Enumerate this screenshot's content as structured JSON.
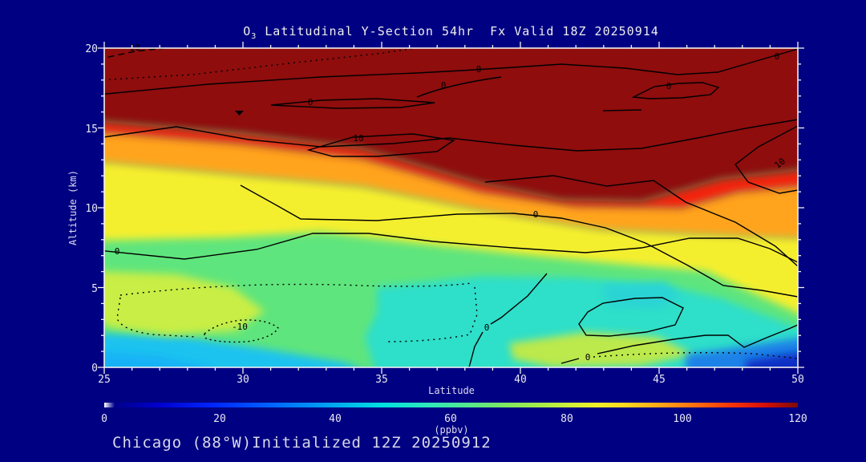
{
  "title": {
    "element": "O",
    "subscript": "3",
    "text": " Latitudinal Y-Section 54hr  Fx Valid 18Z 20250914"
  },
  "footer": {
    "text": "Chicago (88°W)Initialized 12Z 20250912"
  },
  "axes": {
    "x": {
      "label": "Latitude",
      "ticks": [
        "25",
        "30",
        "35",
        "40",
        "45",
        "50"
      ]
    },
    "y": {
      "label": "Altitude (km)",
      "ticks": [
        "0",
        "5",
        "10",
        "15",
        "20"
      ]
    }
  },
  "colorbar": {
    "ticks": [
      "0",
      "20",
      "40",
      "60",
      "80",
      "100",
      "120"
    ],
    "unit": "(ppbv)",
    "min": 0,
    "max": 120,
    "colors": [
      "#ffffff",
      "#00008b",
      "#0028ff",
      "#00a8f0",
      "#00e0e0",
      "#58e888",
      "#a8ec48",
      "#f0f028",
      "#ffd820",
      "#ffa818",
      "#f83808",
      "#d81008",
      "#7c0a04"
    ]
  },
  "contours": {
    "labels": [
      {
        "t": "10"
      },
      {
        "t": "0"
      },
      {
        "t": "0"
      },
      {
        "t": "0"
      },
      {
        "t": "0"
      },
      {
        "t": "0"
      },
      {
        "t": "10"
      },
      {
        "t": "10"
      },
      {
        "t": "0"
      },
      {
        "t": "0"
      },
      {
        "t": "-10"
      },
      {
        "t": "0"
      },
      {
        "t": "0"
      }
    ],
    "levels": [
      -10,
      0,
      10
    ],
    "negative_style": "dotted"
  },
  "chart_data": {
    "type": "heatmap",
    "title": "O3 Latitudinal Y-Section 54hr  Fx Valid 18Z 20250914",
    "xlabel": "Latitude",
    "ylabel": "Altitude (km)",
    "units": "ppbv",
    "xlim": [
      25,
      50
    ],
    "ylim": [
      0,
      20
    ],
    "colorbar_range": [
      0,
      120
    ],
    "x_latitude": [
      25,
      30,
      35,
      40,
      45,
      50
    ],
    "y_altitude_km": [
      0,
      2,
      4,
      6,
      8,
      10,
      12,
      14,
      16,
      18,
      20
    ],
    "ozone_ppbv_rows_by_altitude": [
      [
        22,
        35,
        48,
        62,
        58,
        8
      ],
      [
        42,
        50,
        45,
        48,
        48,
        35
      ],
      [
        68,
        62,
        55,
        45,
        46,
        48
      ],
      [
        62,
        58,
        58,
        55,
        58,
        58
      ],
      [
        70,
        68,
        65,
        72,
        75,
        68
      ],
      [
        80,
        80,
        78,
        90,
        88,
        85
      ],
      [
        85,
        88,
        85,
        120,
        115,
        105
      ],
      [
        95,
        96,
        100,
        120,
        120,
        120
      ],
      [
        120,
        120,
        120,
        120,
        120,
        120
      ],
      [
        120,
        120,
        120,
        120,
        120,
        120
      ],
      [
        120,
        120,
        120,
        120,
        120,
        120
      ]
    ],
    "overlay_contour_levels": [
      -10,
      0,
      10
    ],
    "legend_position": "bottom-colorbar",
    "grid": false
  }
}
